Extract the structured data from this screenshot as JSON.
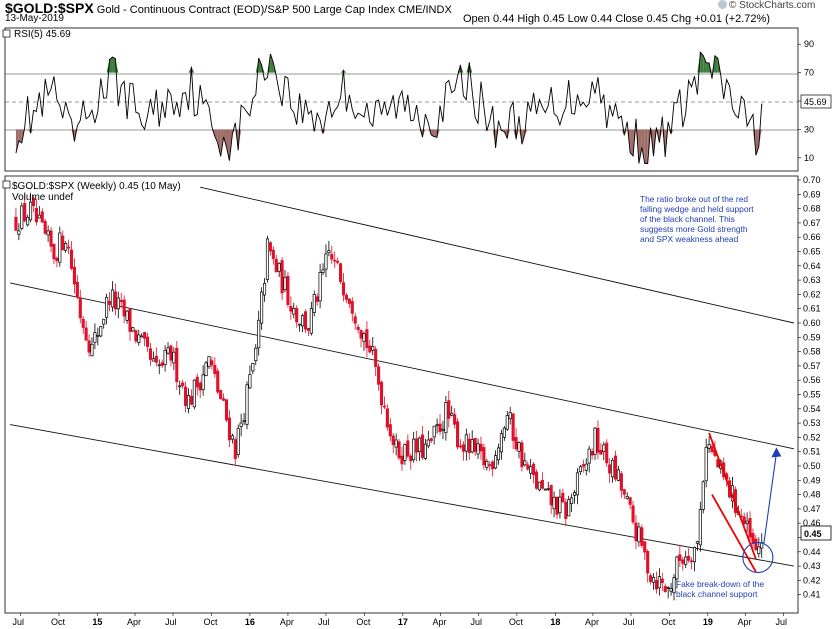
{
  "header": {
    "symbol": "$GOLD:$SPX",
    "description": "Gold - Continuous Contract (EOD)/S&P 500 Large Cap Index  CME/INDX",
    "date": "13-May-2019",
    "ohlc_line": "Open 0.44  High 0.45  Low 0.44  Close 0.45  Chg +0.01 (+2.72%)",
    "credit": "© StockCharts.com"
  },
  "colors": {
    "up": "#000000",
    "down": "#e0102a",
    "rsi_overbought": "#3d7d3d",
    "rsi_oversold": "#a06c68",
    "annotation": "#1f3fb4",
    "wedge": "#ee0000"
  },
  "rsi_panel": {
    "label": "RSI(5) 45.69",
    "current_value": "45.69",
    "y_ticks": [
      "90",
      "70",
      "50",
      "30",
      "10"
    ]
  },
  "price_panel": {
    "label": "$GOLD:$SPX (Weekly) 0.45 (10 May)",
    "volume_label": "Volume undef",
    "last_value": "0.45",
    "y_ticks": [
      "0.70",
      "0.69",
      "0.68",
      "0.67",
      "0.66",
      "0.65",
      "0.64",
      "0.63",
      "0.62",
      "0.61",
      "0.60",
      "0.59",
      "0.58",
      "0.57",
      "0.56",
      "0.55",
      "0.54",
      "0.53",
      "0.52",
      "0.51",
      "0.50",
      "0.49",
      "0.48",
      "0.47",
      "0.46",
      "0.45",
      "0.44",
      "0.43",
      "0.42",
      "0.41"
    ],
    "x_ticks": [
      "Jul",
      "Oct",
      "15",
      "Apr",
      "Jul",
      "Oct",
      "16",
      "Apr",
      "Jul",
      "Oct",
      "17",
      "Apr",
      "Jul",
      "Oct",
      "18",
      "Apr",
      "Jul",
      "Oct",
      "19",
      "Apr",
      "Jul"
    ]
  },
  "annotations": {
    "top_note": [
      "The ratio broke out of the red",
      "falling wedge and held support",
      "of the black channel. This",
      "suggests more Gold strength",
      "and SPX weakness ahead"
    ],
    "bottom_note": [
      "Fake break-down of the",
      "black channel support"
    ]
  },
  "chart_data": {
    "type": "candlestick",
    "title": "$GOLD:$SPX (Weekly)",
    "y_range": [
      0.405,
      0.705
    ],
    "rsi_range": [
      0,
      100
    ],
    "x_range": [
      "2014-06",
      "2019-07"
    ],
    "anchors": [
      [
        "2014-06-20",
        0.672
      ],
      [
        "2014-07-25",
        0.678
      ],
      [
        "2014-09-19",
        0.648
      ],
      [
        "2014-10-17",
        0.662
      ],
      [
        "2014-11-21",
        0.607
      ],
      [
        "2014-12-19",
        0.582
      ],
      [
        "2015-01-30",
        0.619
      ],
      [
        "2015-03-13",
        0.602
      ],
      [
        "2015-05-22",
        0.566
      ],
      [
        "2015-06-26",
        0.578
      ],
      [
        "2015-08-07",
        0.545
      ],
      [
        "2015-09-25",
        0.574
      ],
      [
        "2015-11-27",
        0.512
      ],
      [
        "2016-01-15",
        0.578
      ],
      [
        "2016-02-12",
        0.652
      ],
      [
        "2016-04-22",
        0.606
      ],
      [
        "2016-05-20",
        0.598
      ],
      [
        "2016-07-08",
        0.648
      ],
      [
        "2016-08-26",
        0.62
      ],
      [
        "2016-10-21",
        0.575
      ],
      [
        "2016-12-16",
        0.51
      ],
      [
        "2017-03-03",
        0.512
      ],
      [
        "2017-04-14",
        0.537
      ],
      [
        "2017-05-19",
        0.517
      ],
      [
        "2017-07-28",
        0.5
      ],
      [
        "2017-09-08",
        0.535
      ],
      [
        "2017-10-20",
        0.5
      ],
      [
        "2017-12-08",
        0.478
      ],
      [
        "2018-01-26",
        0.468
      ],
      [
        "2018-04-06",
        0.518
      ],
      [
        "2018-06-01",
        0.49
      ],
      [
        "2018-08-17",
        0.425
      ],
      [
        "2018-09-28",
        0.413
      ],
      [
        "2018-10-26",
        0.435
      ],
      [
        "2018-12-07",
        0.445
      ],
      [
        "2018-12-28",
        0.518
      ],
      [
        "2019-02-01",
        0.495
      ],
      [
        "2019-03-15",
        0.47
      ],
      [
        "2019-04-26",
        0.437
      ],
      [
        "2019-05-10",
        0.45
      ]
    ],
    "rsi_anchors": [
      [
        "2014-06-20",
        30
      ],
      [
        "2014-09-19",
        55
      ],
      [
        "2014-10-31",
        22
      ],
      [
        "2015-02-06",
        68
      ],
      [
        "2015-04-17",
        38
      ],
      [
        "2015-08-14",
        60
      ],
      [
        "2015-10-09",
        28
      ],
      [
        "2015-11-27",
        22
      ],
      [
        "2016-02-12",
        82
      ],
      [
        "2016-04-22",
        44
      ],
      [
        "2016-06-24",
        38
      ],
      [
        "2016-08-12",
        58
      ],
      [
        "2016-10-28",
        36
      ],
      [
        "2016-12-16",
        48
      ],
      [
        "2017-03-17",
        38
      ],
      [
        "2017-06-02",
        66
      ],
      [
        "2017-08-04",
        32
      ],
      [
        "2017-10-20",
        36
      ],
      [
        "2017-12-08",
        44
      ],
      [
        "2018-04-06",
        60
      ],
      [
        "2018-06-08",
        32
      ],
      [
        "2018-08-17",
        15
      ],
      [
        "2018-10-12",
        35
      ],
      [
        "2018-12-28",
        78
      ],
      [
        "2019-02-15",
        56
      ],
      [
        "2019-04-26",
        24
      ],
      [
        "2019-05-10",
        45.69
      ]
    ],
    "channel_lines": [
      {
        "name": "channel top",
        "points": [
          [
            "2015-09-04",
            0.695
          ],
          [
            "2019-07-26",
            0.6
          ]
        ]
      },
      {
        "name": "channel middle",
        "points": [
          [
            "2014-06-06",
            0.628
          ],
          [
            "2019-07-26",
            0.512
          ]
        ]
      },
      {
        "name": "channel bottom",
        "points": [
          [
            "2014-06-06",
            0.529
          ],
          [
            "2019-07-26",
            0.43
          ]
        ]
      }
    ],
    "wedge_lines": [
      {
        "points": [
          [
            "2019-01-04",
            0.523
          ],
          [
            "2019-04-26",
            0.435
          ]
        ]
      },
      {
        "points": [
          [
            "2019-01-11",
            0.48
          ],
          [
            "2019-04-26",
            0.426
          ]
        ]
      }
    ],
    "projection_arrow": {
      "points": [
        [
          "2019-04-26",
          0.446
        ],
        [
          "2019-06-14",
          0.513
        ]
      ]
    },
    "highlight_circle": {
      "center": [
        "2019-04-26",
        0.436
      ]
    }
  }
}
